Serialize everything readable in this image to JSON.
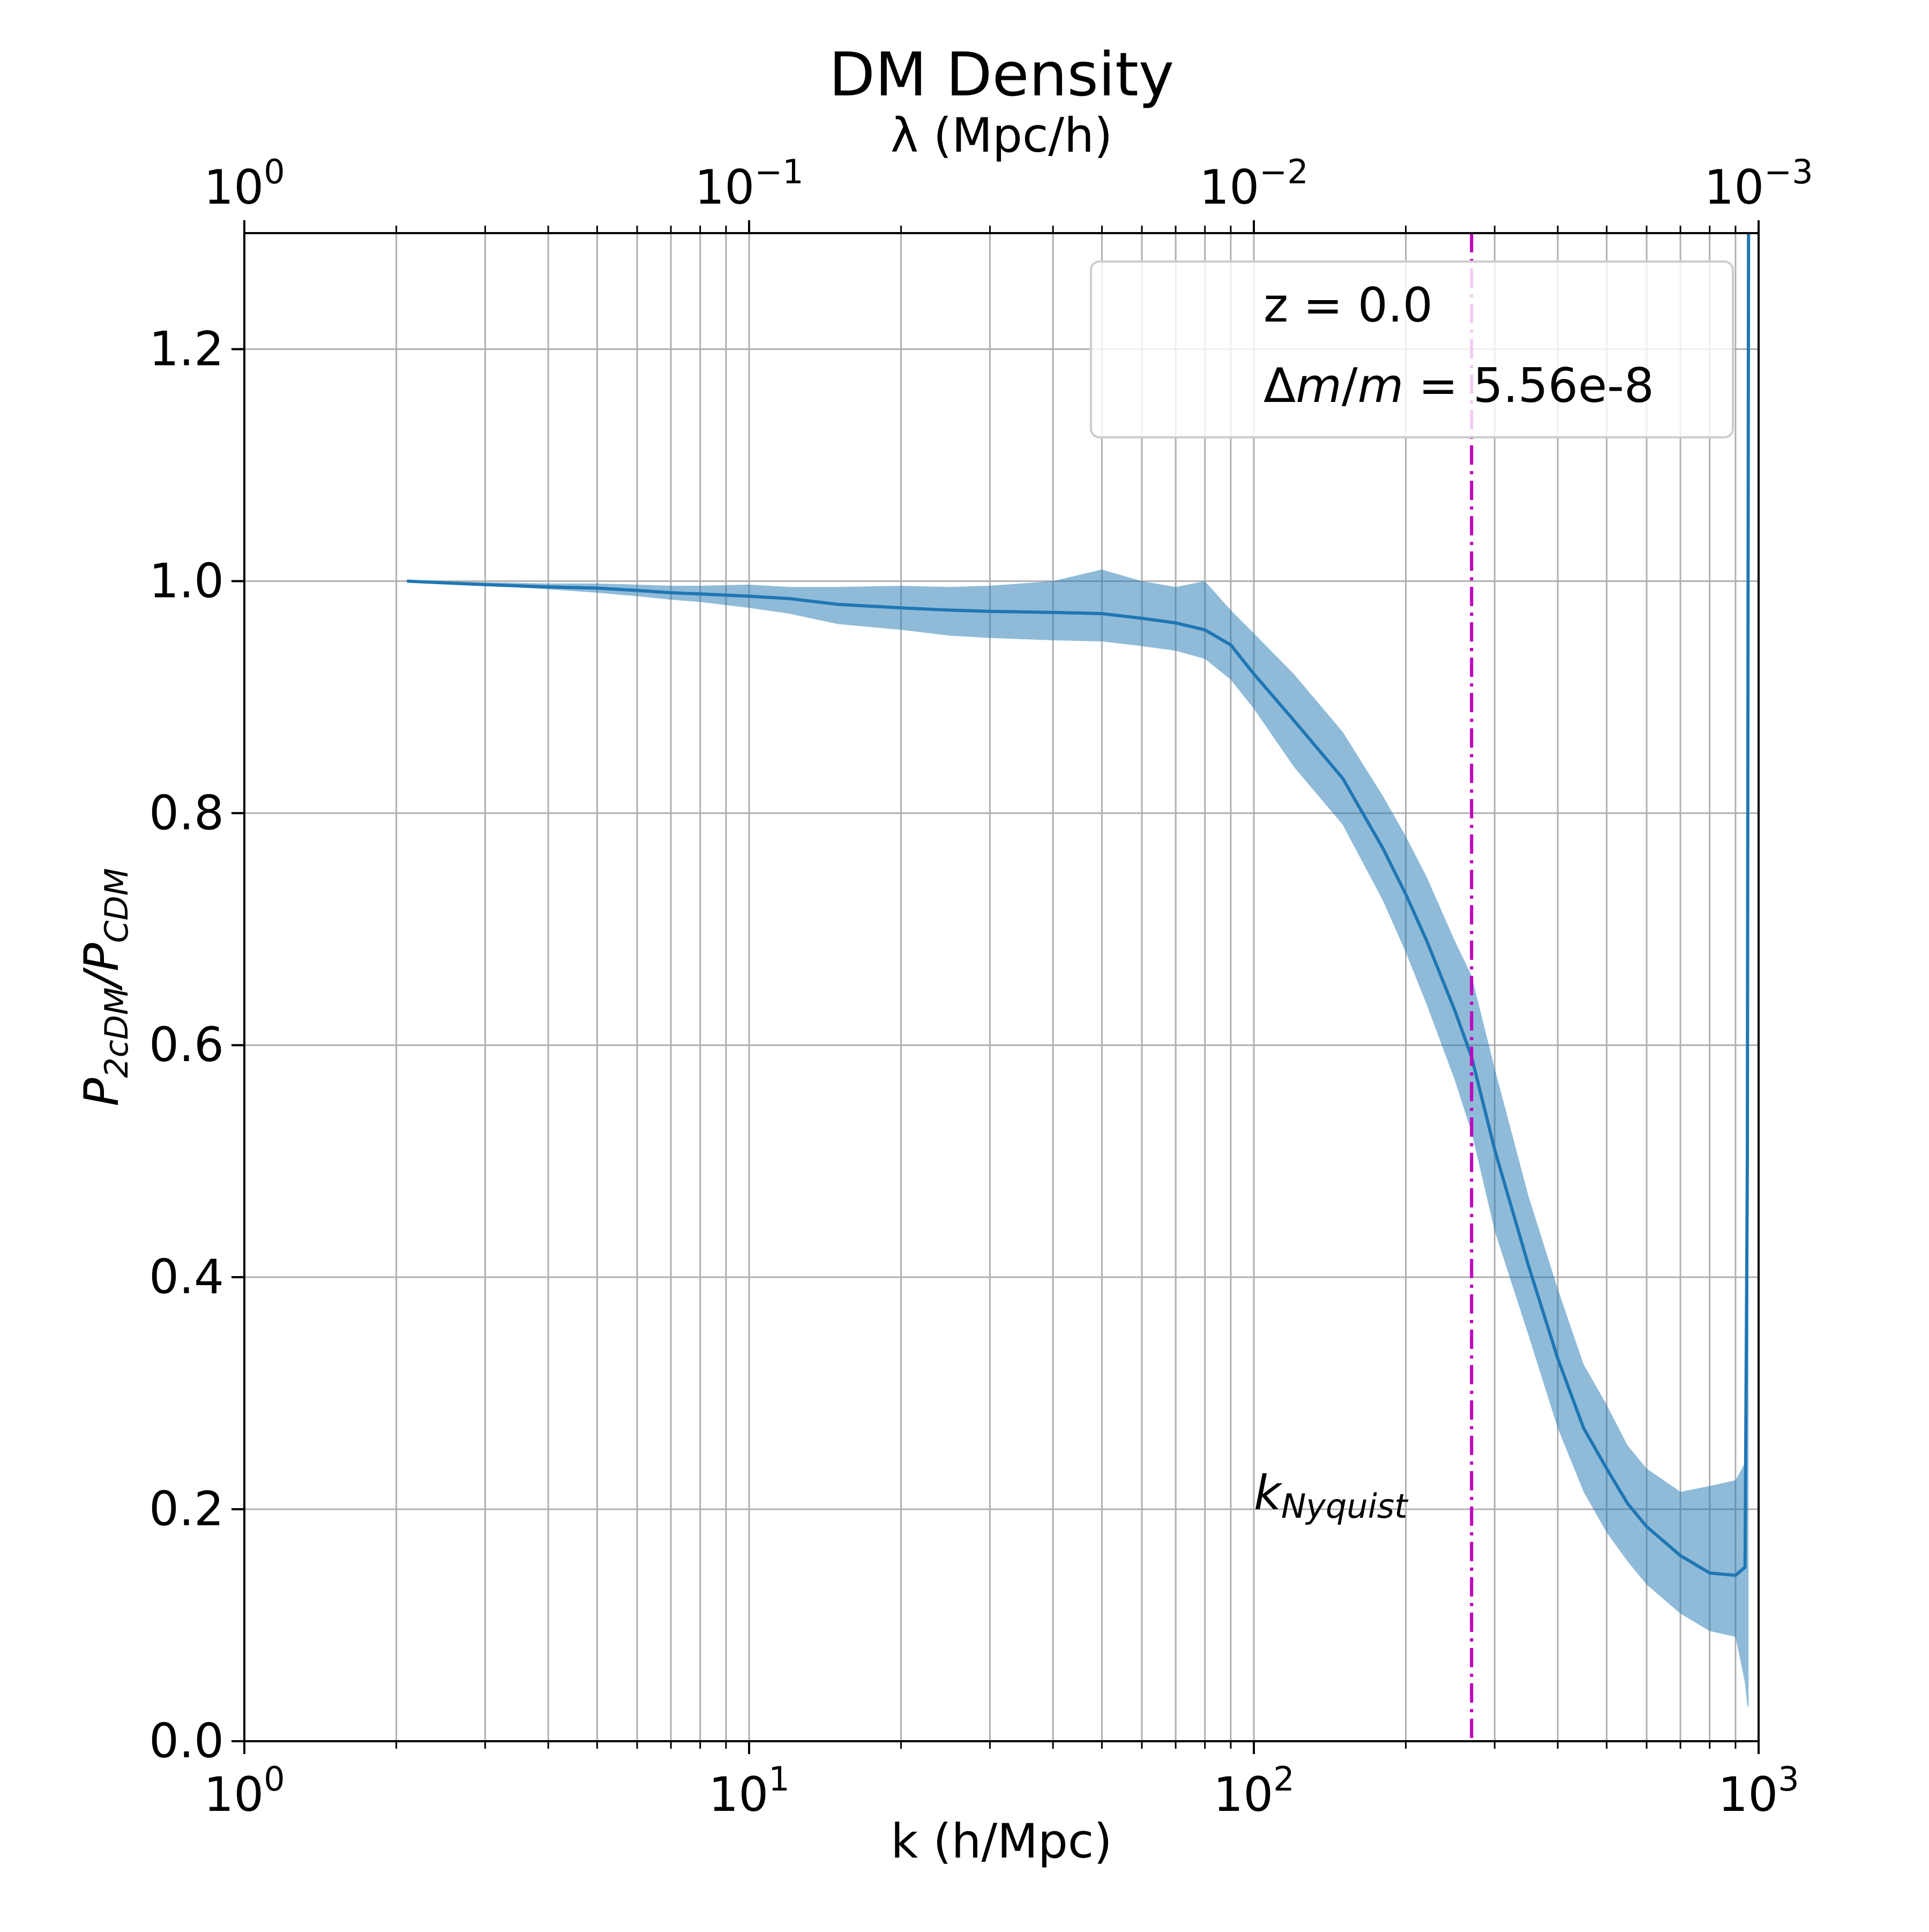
{
  "chart_data": {
    "type": "line",
    "title": "DM Density",
    "xlabel": "k (h/Mpc)",
    "ylabel": "P_2cDM/P_CDM",
    "ylabel_parts": {
      "base": "P",
      "sub1": "2cDM",
      "slash": "/",
      "base2": "P",
      "sub2": "CDM"
    },
    "top_xlabel": "λ (Mpc/h)",
    "x_scale": "log",
    "xlim": [
      1,
      1000
    ],
    "ylim": [
      0,
      1.3
    ],
    "grid": true,
    "x_ticks": [
      {
        "value": 1,
        "base": "10",
        "exp": "0"
      },
      {
        "value": 10,
        "base": "10",
        "exp": "1"
      },
      {
        "value": 100,
        "base": "10",
        "exp": "2"
      },
      {
        "value": 1000,
        "base": "10",
        "exp": "3"
      }
    ],
    "top_ticks": [
      {
        "value": 1,
        "base": "10",
        "exp": "0"
      },
      {
        "value": 0.1,
        "base": "10",
        "exp": "−1"
      },
      {
        "value": 0.01,
        "base": "10",
        "exp": "−2"
      },
      {
        "value": 0.001,
        "base": "10",
        "exp": "−3"
      }
    ],
    "y_ticks": [
      {
        "value": 0.0,
        "label": "0.0"
      },
      {
        "value": 0.2,
        "label": "0.2"
      },
      {
        "value": 0.4,
        "label": "0.4"
      },
      {
        "value": 0.6,
        "label": "0.6"
      },
      {
        "value": 0.8,
        "label": "0.8"
      },
      {
        "value": 1.0,
        "label": "1.0"
      },
      {
        "value": 1.2,
        "label": "1.2"
      }
    ],
    "legend": {
      "placement": "top-right",
      "lines": [
        "z = 0.0",
        "Δm/m = 5.56e-8"
      ],
      "line1": "z = 0.0",
      "line2_delta": "Δ",
      "line2_m": "m",
      "line2_slash": "/",
      "line2_m2": "m",
      "line2_rest": " = 5.56e-8"
    },
    "nyquist": {
      "k": 270,
      "label_base": "k",
      "label_sub": "Nyquist",
      "label_k_position": 100,
      "label_y_position": 0.2,
      "color": "#bf00bf"
    },
    "series": [
      {
        "color": "#1f77b4",
        "band_color": "#1f77b4",
        "band_opacity": 0.5,
        "x": [
          2.1,
          3,
          4,
          5,
          6,
          7,
          8,
          10,
          12,
          15,
          20,
          25,
          30,
          40,
          50,
          60,
          70,
          80,
          90,
          100,
          120,
          150,
          180,
          200,
          220,
          250,
          270,
          300,
          350,
          400,
          450,
          500,
          550,
          600,
          700,
          800,
          900,
          940,
          950,
          955
        ],
        "y": [
          1.0,
          0.997,
          0.995,
          0.994,
          0.992,
          0.99,
          0.989,
          0.987,
          0.985,
          0.98,
          0.977,
          0.975,
          0.974,
          0.973,
          0.972,
          0.968,
          0.964,
          0.958,
          0.945,
          0.92,
          0.88,
          0.83,
          0.77,
          0.73,
          0.69,
          0.63,
          0.59,
          0.51,
          0.41,
          0.33,
          0.27,
          0.235,
          0.205,
          0.185,
          0.16,
          0.145,
          0.143,
          0.15,
          0.5,
          1.3
        ],
        "lower": [
          1.0,
          0.996,
          0.993,
          0.99,
          0.987,
          0.984,
          0.982,
          0.977,
          0.972,
          0.963,
          0.958,
          0.953,
          0.951,
          0.949,
          0.948,
          0.944,
          0.94,
          0.933,
          0.915,
          0.89,
          0.84,
          0.79,
          0.725,
          0.68,
          0.635,
          0.57,
          0.525,
          0.44,
          0.35,
          0.27,
          0.215,
          0.18,
          0.155,
          0.135,
          0.11,
          0.095,
          0.09,
          0.05,
          0.03,
          0.03
        ],
        "upper": [
          1.0,
          0.999,
          0.998,
          0.998,
          0.997,
          0.996,
          0.996,
          0.997,
          0.995,
          0.995,
          0.996,
          0.995,
          0.996,
          1.0,
          1.01,
          1.0,
          0.995,
          1.0,
          0.975,
          0.955,
          0.92,
          0.87,
          0.815,
          0.78,
          0.745,
          0.69,
          0.66,
          0.58,
          0.47,
          0.39,
          0.325,
          0.29,
          0.255,
          0.235,
          0.215,
          0.22,
          0.225,
          0.24,
          0.6,
          1.3
        ]
      }
    ]
  }
}
